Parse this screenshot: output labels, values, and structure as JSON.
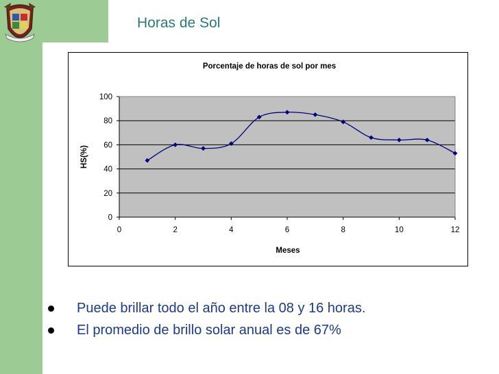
{
  "slide": {
    "title": "Horas de Sol",
    "bullets": [
      "Puede brillar todo el año entre la 08 y 16 horas.",
      "El promedio de brillo solar anual es de 67%"
    ]
  },
  "theme": {
    "sidebar": "#9ccb94",
    "title_color": "#2b7a7a",
    "bullet_color": "#1a3a8a",
    "plot_bg": "#c0c0c0",
    "series_color": "#000080"
  },
  "logo": {
    "icon": "university-crest-icon"
  },
  "chart_data": {
    "type": "line",
    "title": "Porcentaje de horas de sol por mes",
    "xlabel": "Meses",
    "ylabel": "HS(%)",
    "xlim": [
      0,
      12
    ],
    "ylim": [
      0,
      100
    ],
    "xticks": [
      0,
      2,
      4,
      6,
      8,
      10,
      12
    ],
    "yticks": [
      0,
      20,
      40,
      60,
      80,
      100
    ],
    "grid": true,
    "legend": "none",
    "series": [
      {
        "x": [
          1,
          2,
          3,
          4,
          5,
          6,
          7,
          8,
          9,
          10,
          11,
          12
        ],
        "values": [
          47,
          60,
          57,
          61,
          83,
          87,
          85,
          79,
          66,
          64,
          64,
          53
        ]
      }
    ]
  }
}
